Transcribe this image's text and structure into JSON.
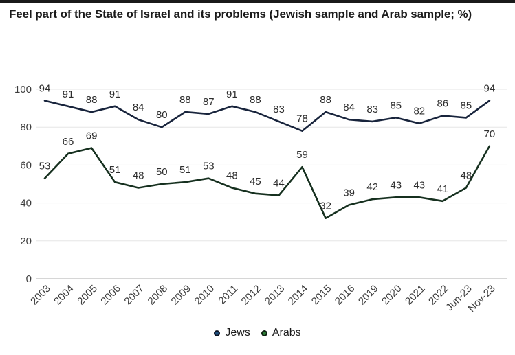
{
  "title": "Feel part of the State of Israel and its problems (Jewish sample and Arab sample; %)",
  "chart_data": {
    "type": "line",
    "title": "Feel part of the State of Israel and its problems (Jewish sample and Arab sample; %)",
    "categories": [
      "2003",
      "2004",
      "2005",
      "2006",
      "2007",
      "2008",
      "2009",
      "2010",
      "2011",
      "2012",
      "2013",
      "2014",
      "2015",
      "2016",
      "2019",
      "2020",
      "2021",
      "2022",
      "Jun-23",
      "Nov-23"
    ],
    "series": [
      {
        "name": "Jews",
        "color": "#18243c",
        "marker_fill": "#1e4e7c",
        "values": [
          94,
          91,
          88,
          91,
          84,
          80,
          88,
          87,
          91,
          88,
          83,
          78,
          88,
          84,
          83,
          85,
          82,
          86,
          85,
          94
        ]
      },
      {
        "name": "Arabs",
        "color": "#16301f",
        "marker_fill": "#2c7c34",
        "values": [
          53,
          66,
          69,
          51,
          48,
          50,
          51,
          53,
          48,
          45,
          44,
          59,
          32,
          39,
          42,
          43,
          43,
          41,
          48,
          70
        ]
      }
    ],
    "xlabel": "",
    "ylabel": "",
    "ylim": [
      0,
      100
    ],
    "yticks": [
      0,
      20,
      40,
      60,
      80,
      100
    ],
    "grid": true,
    "data_labels": true,
    "legend_position": "bottom"
  },
  "colors": {
    "grid": "#e5e5e5",
    "axis": "#c9c9c9",
    "tick_label": "#3d3d3d",
    "data_label": "#2e2e2e",
    "title": "#1a1a1a",
    "top_bar": "#191919"
  }
}
